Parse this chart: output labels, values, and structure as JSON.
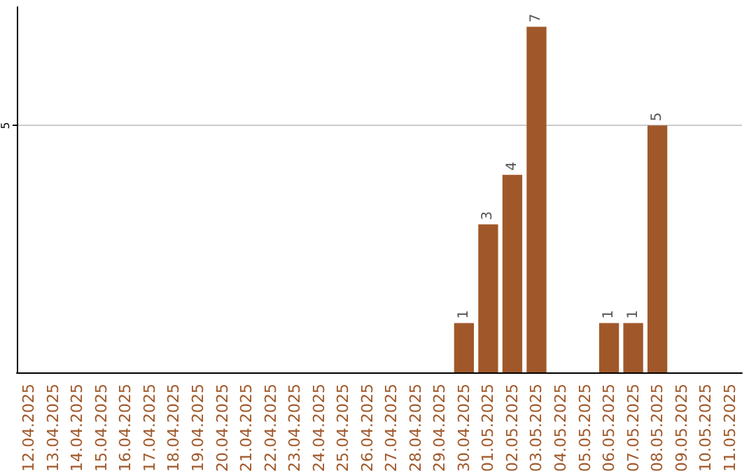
{
  "chart_data": {
    "type": "bar",
    "categories": [
      "12.04.2025",
      "13.04.2025",
      "14.04.2025",
      "15.04.2025",
      "16.04.2025",
      "17.04.2025",
      "18.04.2025",
      "19.04.2025",
      "20.04.2025",
      "21.04.2025",
      "22.04.2025",
      "23.04.2025",
      "24.04.2025",
      "25.04.2025",
      "26.04.2025",
      "27.04.2025",
      "28.04.2025",
      "29.04.2025",
      "30.04.2025",
      "01.05.2025",
      "02.05.2025",
      "03.05.2025",
      "04.05.2025",
      "05.05.2025",
      "06.05.2025",
      "07.05.2025",
      "08.05.2025",
      "09.05.2025",
      "10.05.2025",
      "11.05.2025"
    ],
    "values": [
      null,
      null,
      null,
      null,
      null,
      null,
      null,
      null,
      null,
      null,
      null,
      null,
      null,
      null,
      null,
      null,
      null,
      null,
      1,
      3,
      4,
      7,
      null,
      null,
      1,
      1,
      5,
      null,
      null,
      null
    ],
    "color": "#a0582a",
    "ylim": [
      0,
      7.4
    ],
    "yticks": [
      5
    ],
    "grid": "y",
    "data_labels": true
  }
}
